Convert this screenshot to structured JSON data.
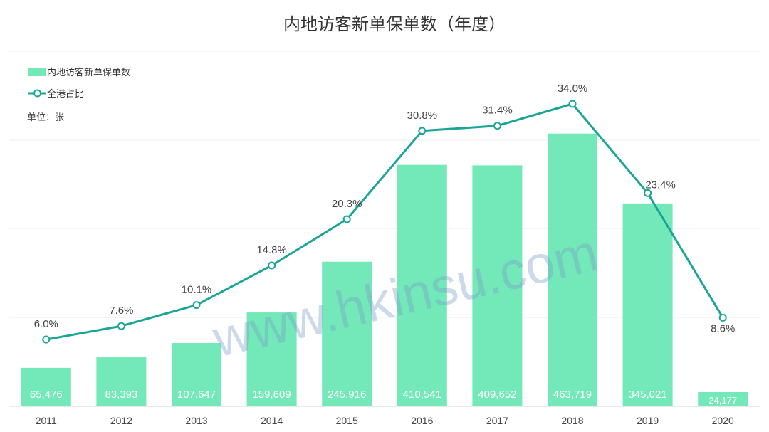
{
  "chart_data": {
    "type": "bar",
    "title": "内地访客新单保单数（年度）",
    "unit_label": "单位：张",
    "categories": [
      "2011",
      "2012",
      "2013",
      "2014",
      "2015",
      "2016",
      "2017",
      "2018",
      "2019",
      "2020"
    ],
    "series": [
      {
        "name": "内地访客新单保单数",
        "type": "bar",
        "color": "#73e8b8",
        "values": [
          65476,
          83393,
          107647,
          159609,
          245916,
          410541,
          409652,
          463719,
          345021,
          24177
        ],
        "labels": [
          "65,476",
          "83,393",
          "107,647",
          "159,609",
          "245,916",
          "410,541",
          "409,652",
          "463,719",
          "345,021",
          "24,177"
        ]
      },
      {
        "name": "全港占比",
        "type": "line",
        "color": "#1aa597",
        "values": [
          6.0,
          7.6,
          10.1,
          14.8,
          20.3,
          30.8,
          31.4,
          34.0,
          23.4,
          8.6
        ],
        "labels": [
          "6.0%",
          "7.6%",
          "10.1%",
          "14.8%",
          "20.3%",
          "30.8%",
          "31.4%",
          "34.0%",
          "23.4%",
          "8.6%"
        ]
      }
    ],
    "ylim": [
      0,
      500000
    ],
    "y2lim": [
      0,
      40
    ],
    "grid": true,
    "legend_position": "top-left"
  },
  "watermark": "www.hkinsu.com"
}
